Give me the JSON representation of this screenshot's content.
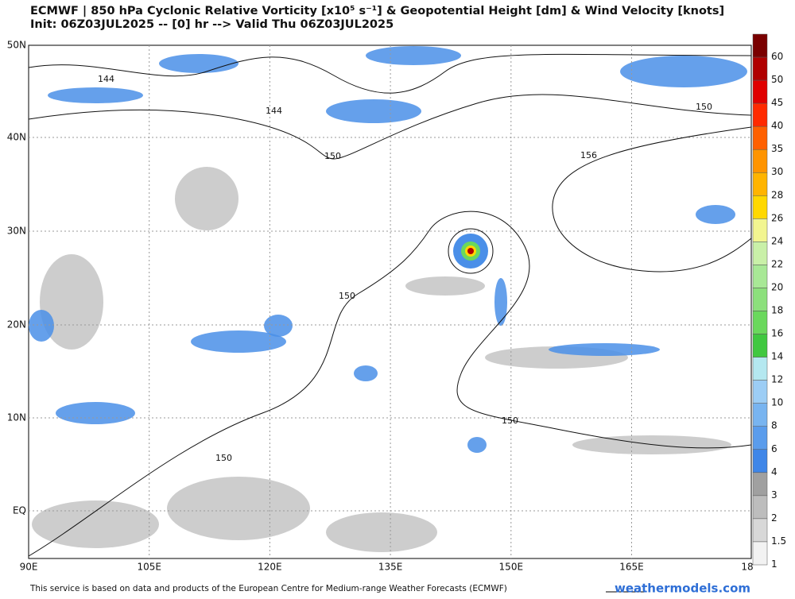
{
  "header": {
    "title": "ECMWF | 850 hPa Cyclonic Relative Vorticity [x10⁵ s⁻¹] & Geopotential Height [dm] & Wind Velocity [knots]",
    "subtitle": "Init: 06Z03JUL2025 -- [0] hr --> Valid Thu 06Z03JUL2025"
  },
  "map": {
    "lat_labels": [
      "50N",
      "40N",
      "30N",
      "20N",
      "10N",
      "EQ"
    ],
    "lon_labels": [
      "90E",
      "105E",
      "120E",
      "135E",
      "150E",
      "165E",
      "18"
    ],
    "contour_labels": [
      "144",
      "144",
      "150",
      "150",
      "156",
      "150",
      "150",
      "150"
    ]
  },
  "colorbar": {
    "levels": [
      {
        "label": "60",
        "color": "#7a0000"
      },
      {
        "label": "50",
        "color": "#b00000"
      },
      {
        "label": "45",
        "color": "#e00000"
      },
      {
        "label": "40",
        "color": "#ff2a00"
      },
      {
        "label": "35",
        "color": "#ff6000"
      },
      {
        "label": "30",
        "color": "#ff9400"
      },
      {
        "label": "28",
        "color": "#ffb400"
      },
      {
        "label": "26",
        "color": "#ffd800"
      },
      {
        "label": "24",
        "color": "#f2f590"
      },
      {
        "label": "22",
        "color": "#c9f0a8"
      },
      {
        "label": "20",
        "color": "#a8e896"
      },
      {
        "label": "18",
        "color": "#8ce07c"
      },
      {
        "label": "16",
        "color": "#6ad85c"
      },
      {
        "label": "14",
        "color": "#40c840"
      },
      {
        "label": "12",
        "color": "#b4e8f0"
      },
      {
        "label": "10",
        "color": "#9ccdf5"
      },
      {
        "label": "8",
        "color": "#78b4f0"
      },
      {
        "label": "6",
        "color": "#5a9cec"
      },
      {
        "label": "4",
        "color": "#3f86e8"
      },
      {
        "label": "3",
        "color": "#a0a0a0"
      },
      {
        "label": "2",
        "color": "#bdbdbd"
      },
      {
        "label": "1.5",
        "color": "#d8d8d8"
      },
      {
        "label": "1",
        "color": "#f2f2f2"
      }
    ]
  },
  "footer": {
    "notice": "This service is based on data and products of the European Centre for Medium-range Weather Forecasts (ECMWF)",
    "brand": "weathermodels.com"
  }
}
